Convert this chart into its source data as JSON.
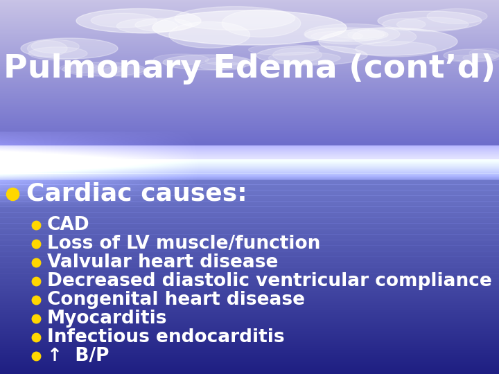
{
  "title": "Pulmonary Edema (cont’d)",
  "title_color": "#FFFFFF",
  "title_fontsize": 34,
  "main_bullet_color": "#FFD700",
  "main_bullet_text": "Cardiac causes:",
  "main_bullet_fontsize": 26,
  "main_bullet_text_color": "#FFFFFF",
  "sub_bullets": [
    "CAD",
    "Loss of LV muscle/function",
    "Valvular heart disease",
    "Decreased diastolic ventricular compliance",
    "Congenital heart disease",
    "Myocarditis",
    "Infectious endocarditis",
    "↑  B/P"
  ],
  "sub_bullet_color": "#FFD700",
  "sub_bullet_text_color": "#FFFFFF",
  "sub_bullet_fontsize": 19,
  "figsize": [
    7.2,
    5.4
  ],
  "dpi": 100
}
